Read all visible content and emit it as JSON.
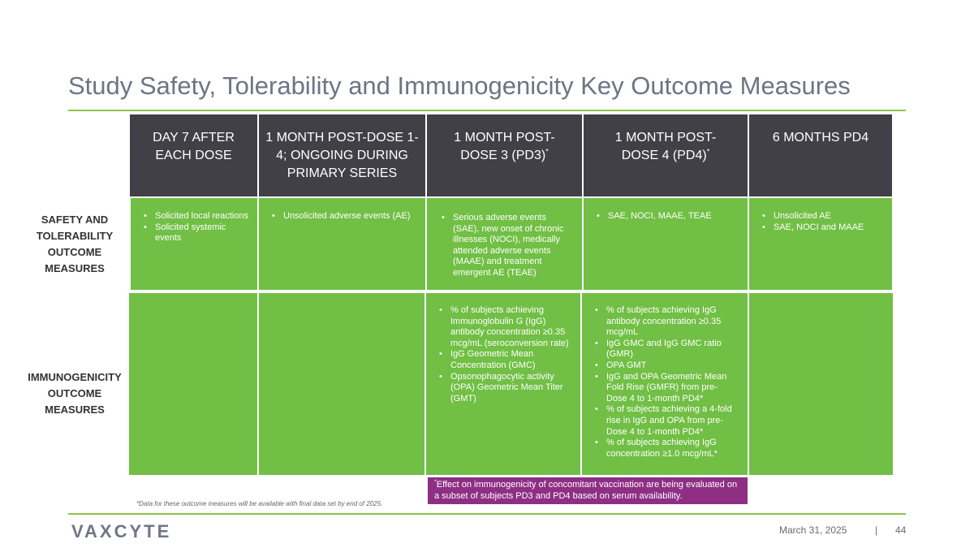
{
  "slide": {
    "title": "Study Safety, Tolerability and Immunogenicity Key Outcome Measures",
    "date": "March 31, 2025",
    "separator": "|",
    "page_number": "44",
    "logo_text": "VAXCYTE"
  },
  "columns": [
    {
      "label": "DAY 7 AFTER EACH DOSE",
      "marker": ""
    },
    {
      "label": "1 MONTH POST-DOSE 1-4; ONGOING DURING PRIMARY SERIES",
      "marker": ""
    },
    {
      "label": "1 MONTH POST-DOSE 3 (PD3)",
      "marker": "*"
    },
    {
      "label": "1 MONTH POST-DOSE 4 (PD4)",
      "marker": "*"
    },
    {
      "label": "6 MONTHS PD4",
      "marker": ""
    }
  ],
  "rows": [
    {
      "label": "SAFETY AND TOLERABILITY OUTCOME MEASURES"
    },
    {
      "label": "IMMUNOGENICITY OUTCOME MEASURES"
    }
  ],
  "safety": [
    [
      "Solicited local reactions",
      "Solicited systemic events"
    ],
    [
      "Unsolicited adverse events (AE)"
    ],
    [
      "Serious adverse events (SAE), new onset of chronic illnesses (NOCI), medically attended adverse events (MAAE) and treatment emergent AE (TEAE)"
    ],
    [
      "SAE, NOCI, MAAE, TEAE"
    ],
    [
      "Unsolicited AE",
      "SAE, NOCI and MAAE"
    ]
  ],
  "immunogenicity": [
    [],
    [],
    [
      "% of subjects achieving Immunoglobulin G (IgG) antibody concentration ≥0.35 mcg/mL (seroconversion rate)",
      "IgG Geometric Mean Concentration (GMC)",
      "Opsonophagocytic activity (OPA) Geometric Mean Titer (GMT)"
    ],
    [
      "% of subjects achieving IgG antibody concentration ≥0.35 mcg/mL",
      "IgG GMC and IgG GMC ratio (GMR)",
      "OPA GMT",
      "IgG and OPA Geometric Mean Fold Rise (GMFR) from pre-Dose 4 to 1-month PD4*",
      "% of subjects achieving a 4-fold rise in IgG and OPA from pre-Dose 4 to 1-month PD4*",
      "% of subjects achieving IgG concentration ≥1.0 mcg/mL*"
    ],
    []
  ],
  "footnotes": {
    "box_marker": "*",
    "box_text": "Effect on immunogenicity of concomitant vaccination are being evaluated on a subset of subjects PD3 and PD4 based on serum availability.",
    "small_text": "*Data for these outcome measures will be available with final data set by end of 2025."
  },
  "colors": {
    "header_bg": "#414046",
    "cell_green": "#71bf45",
    "accent_line": "#8dc54a",
    "footnote_purple": "#8e2f84",
    "title_gray": "#6b7585"
  }
}
